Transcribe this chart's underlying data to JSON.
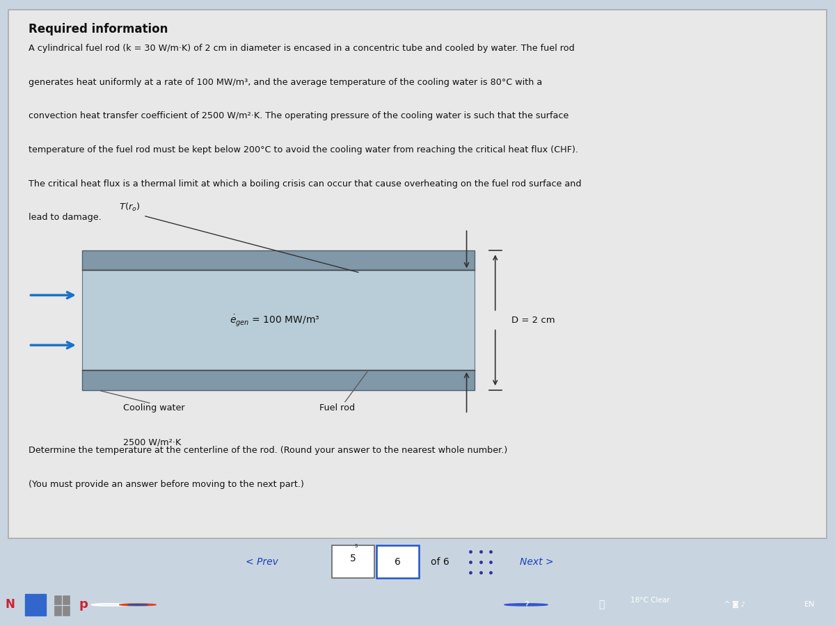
{
  "page_bg": "#c8d5e0",
  "main_box_bg": "#e8e8e8",
  "main_box_border": "#aaaaaa",
  "below_box_bg": "#c8d5e0",
  "title": "Required information",
  "para_line1": "A cylindrical fuel rod (k = 30 W/m·K) of 2 cm in diameter is encased in a concentric tube and cooled by water. The fuel rod",
  "para_line2": "generates heat uniformly at a rate of 100 MW/m³, and the average temperature of the cooling water is 80°C with a",
  "para_line3": "convection heat transfer coefficient of 2500 W/m²·K. The operating pressure of the cooling water is such that the surface",
  "para_line4": "temperature of the fuel rod must be kept below 200°C to avoid the cooling water from reaching the critical heat flux (CHF).",
  "para_line5": "The critical heat flux is a thermal limit at which a boiling crisis can occur that cause overheating on the fuel rod surface and",
  "para_line6": "lead to damage.",
  "question_line1": "Determine the temperature at the centerline of the rod. (Round your answer to the nearest whole number.)",
  "question_line2": "(You must provide an answer before moving to the next part.)",
  "diagram_gen_text": "$\\dot{e}_{gen}$ = 100 MW/m³",
  "diagram_T_label": "$T(r_o)$",
  "diagram_cooling_label": "Cooling water",
  "diagram_h_label": "2500 W/m²·K",
  "diagram_fuel_label": "Fuel rod",
  "diagram_D_label": "D = 2 cm",
  "rod_fill": "#b8cdd8",
  "rod_border": "#607080",
  "outer_band_fill": "#8098a8",
  "outer_band_border": "#506070",
  "arrow_blue": "#1a72c8",
  "dim_color": "#333333",
  "nav_bg": "#c8d5e0",
  "taskbar_bg": "#1e1e28",
  "nav_prev_text": "< Prev",
  "nav_next_text": "Next >",
  "nav_5": "5",
  "nav_6": "6",
  "nav_of6": "of 6"
}
